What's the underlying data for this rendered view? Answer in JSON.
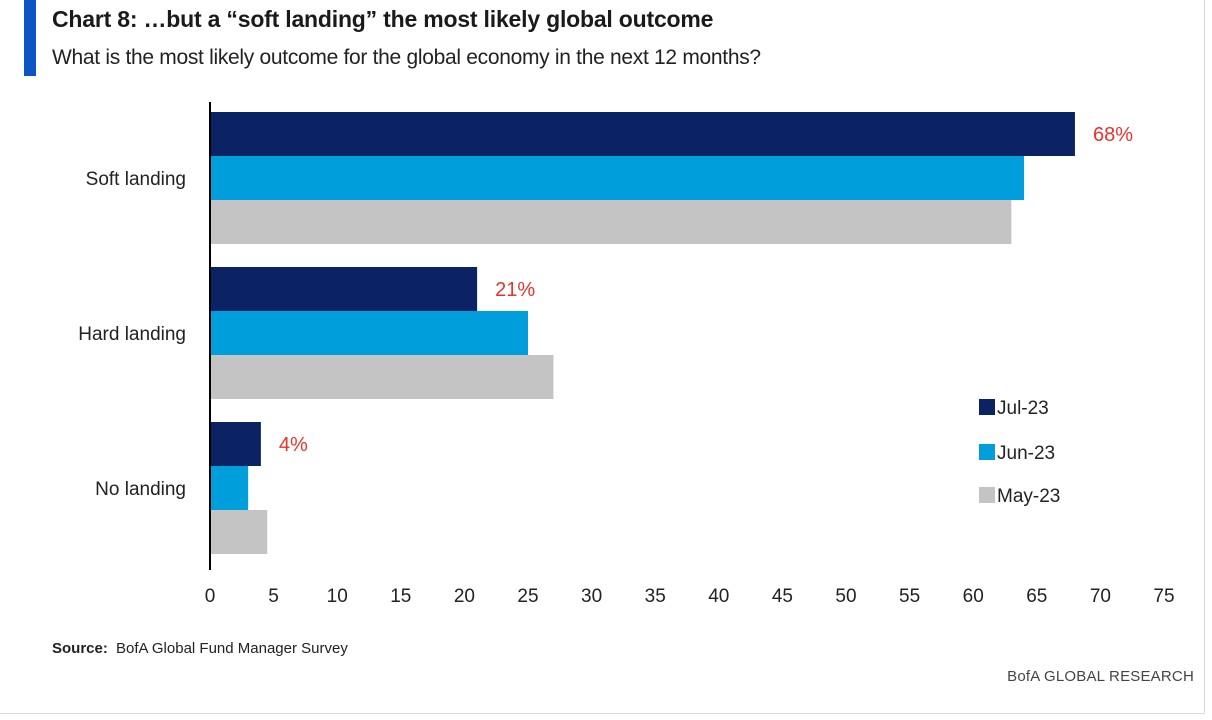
{
  "header": {
    "title": "Chart 8: …but a “soft landing” the most likely global outcome",
    "subtitle": "What is the most likely outcome for the global economy in the next 12 months?"
  },
  "footer": {
    "source_label": "Source:",
    "source_text": "BofA Global Fund Manager Survey",
    "brand": "BofA GLOBAL RESEARCH"
  },
  "colors": {
    "accent": "#0b55c5",
    "jul": "#0b2265",
    "jun": "#009fdb",
    "may": "#c4c4c4",
    "label_red": "#e8322c"
  },
  "chart_data": {
    "type": "bar",
    "orientation": "horizontal",
    "categories": [
      "Soft landing",
      "Hard landing",
      "No landing"
    ],
    "series": [
      {
        "name": "Jul-23",
        "color": "#0b2265",
        "values": [
          68,
          21,
          4
        ]
      },
      {
        "name": "Jun-23",
        "color": "#009fdb",
        "values": [
          64,
          25,
          3
        ]
      },
      {
        "name": "May-23",
        "color": "#c4c4c4",
        "values": [
          63,
          27,
          4.5
        ]
      }
    ],
    "data_labels": [
      "68%",
      "21%",
      "4%"
    ],
    "xlim": [
      0,
      75
    ],
    "xticks": [
      0,
      5,
      10,
      15,
      20,
      25,
      30,
      35,
      40,
      45,
      50,
      55,
      60,
      65,
      70,
      75
    ],
    "xlabel": "",
    "ylabel": "",
    "grid": false,
    "legend_position": "bottom-right"
  }
}
